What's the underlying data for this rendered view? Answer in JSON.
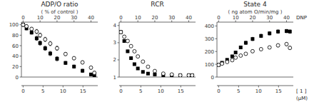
{
  "chart_data": [
    {
      "type": "scatter",
      "title": "ADP/O ratio",
      "subtitle": "( % of control )",
      "xlim": [
        -1,
        44
      ],
      "xticks": [
        0,
        10,
        20,
        30,
        40
      ],
      "x2lim": [
        -0.425,
        18.7
      ],
      "x2ticks": [
        0,
        5,
        10,
        15
      ],
      "ylim": [
        0,
        105
      ],
      "yticks": [
        0,
        20,
        40,
        60,
        80,
        100
      ],
      "series": [
        {
          "marker": "square",
          "color": "#000000",
          "x": [
            0,
            2,
            5,
            8,
            10,
            13,
            16,
            20,
            25,
            30,
            35,
            40,
            42
          ],
          "values": [
            100,
            93,
            85,
            74,
            65,
            55,
            45,
            35,
            27,
            20,
            12,
            5,
            3
          ],
          "errors": [
            3,
            3,
            3,
            4,
            4,
            4,
            4,
            4,
            3,
            3,
            3,
            2,
            2
          ]
        },
        {
          "marker": "circle-open",
          "color": "#000000",
          "x": [
            0,
            2,
            5,
            8,
            10,
            13,
            16,
            20,
            25,
            30,
            35,
            40,
            42
          ],
          "values": [
            100,
            97,
            92,
            87,
            80,
            72,
            64,
            55,
            44,
            36,
            28,
            18,
            8
          ],
          "errors": [
            3,
            3,
            3,
            4,
            4,
            4,
            4,
            4,
            3,
            3,
            3,
            3,
            3
          ]
        }
      ]
    },
    {
      "type": "scatter",
      "title": "RCR",
      "xlim": [
        -1,
        44
      ],
      "xticks": [
        0,
        10,
        20,
        30,
        40
      ],
      "x2lim": [
        -0.425,
        18.7
      ],
      "x2ticks": [
        0,
        5,
        10,
        15
      ],
      "ylim": [
        1,
        4.2
      ],
      "yticks": [
        1,
        2,
        3,
        4
      ],
      "series": [
        {
          "marker": "square",
          "color": "#000000",
          "x": [
            0,
            2,
            4,
            6,
            8,
            10,
            13,
            16,
            20,
            25,
            30,
            35,
            40,
            42
          ],
          "values": [
            3.62,
            3.1,
            2.5,
            2.1,
            1.75,
            1.5,
            1.3,
            1.2,
            1.15,
            1.1,
            1.1,
            1.1,
            1.1,
            1.1
          ],
          "errors": [
            0.08,
            0.08,
            0.07,
            0.06,
            0.06,
            0.05,
            0.05,
            0.04,
            0.04,
            0.03,
            0.03,
            0.03,
            0.03,
            0.03
          ]
        },
        {
          "marker": "circle-open",
          "color": "#000000",
          "x": [
            0,
            2,
            4,
            6,
            8,
            10,
            13,
            16,
            20,
            25,
            30,
            35,
            40,
            42
          ],
          "values": [
            3.62,
            3.35,
            3.1,
            2.8,
            2.5,
            2.2,
            1.9,
            1.6,
            1.35,
            1.2,
            1.15,
            1.1,
            1.1,
            1.1
          ],
          "errors": [
            0.08,
            0.08,
            0.07,
            0.06,
            0.06,
            0.05,
            0.05,
            0.05,
            0.04,
            0.04,
            0.03,
            0.03,
            0.03,
            0.03
          ]
        }
      ]
    },
    {
      "type": "scatter",
      "title": "State 4",
      "subtitle": "( ng atom O/min/mg )",
      "xlabel": "DNP",
      "x2label": "[ 1 ]",
      "x_unit_label": "(μM)",
      "xlim": [
        -1,
        44
      ],
      "xticks": [
        0,
        10,
        20,
        30,
        40
      ],
      "x2lim": [
        -0.425,
        18.7
      ],
      "x2ticks": [
        0,
        5,
        10,
        15
      ],
      "ylim": [
        0,
        430
      ],
      "yticks": [
        0,
        100,
        200,
        300,
        400
      ],
      "series": [
        {
          "marker": "square",
          "color": "#000000",
          "x": [
            0,
            2,
            5,
            8,
            10,
            13,
            16,
            20,
            25,
            30,
            35,
            40,
            42
          ],
          "values": [
            95,
            112,
            135,
            162,
            192,
            232,
            268,
            298,
            322,
            342,
            356,
            360,
            356
          ],
          "errors": [
            6,
            7,
            8,
            9,
            10,
            11,
            12,
            13,
            13,
            13,
            13,
            13,
            13
          ]
        },
        {
          "marker": "circle-open",
          "color": "#000000",
          "x": [
            0,
            2,
            5,
            8,
            10,
            13,
            16,
            20,
            25,
            30,
            35,
            40,
            42
          ],
          "values": [
            95,
            105,
            118,
            132,
            152,
            168,
            182,
            202,
            218,
            232,
            248,
            258,
            228
          ],
          "errors": [
            6,
            7,
            7,
            8,
            9,
            9,
            10,
            10,
            10,
            11,
            12,
            13,
            13
          ]
        }
      ]
    }
  ]
}
